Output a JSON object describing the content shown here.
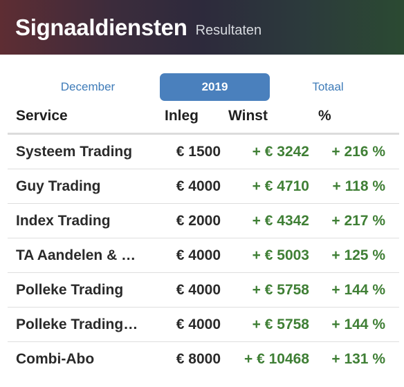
{
  "header": {
    "title": "Signaaldiensten",
    "subtitle": "Resultaten"
  },
  "tabs": [
    {
      "label": "December",
      "active": false
    },
    {
      "label": "2019",
      "active": true
    },
    {
      "label": "Totaal",
      "active": false
    }
  ],
  "table": {
    "columns": [
      "Service",
      "Inleg",
      "Winst",
      "%"
    ],
    "rows": [
      {
        "service": "Systeem Trading",
        "inleg": "€ 1500",
        "winst": "+ € 3242",
        "pct": "+ 216 %"
      },
      {
        "service": "Guy Trading",
        "inleg": "€ 4000",
        "winst": "+ € 4710",
        "pct": "+ 118 %"
      },
      {
        "service": "Index Trading",
        "inleg": "€ 2000",
        "winst": "+ € 4342",
        "pct": "+ 217 %"
      },
      {
        "service": "TA Aandelen & …",
        "inleg": "€ 4000",
        "winst": "+ € 5003",
        "pct": "+ 125 %"
      },
      {
        "service": "Polleke Trading",
        "inleg": "€ 4000",
        "winst": "+ € 5758",
        "pct": "+ 144 %"
      },
      {
        "service": "Polleke Trading…",
        "inleg": "€ 4000",
        "winst": "+ € 5758",
        "pct": "+ 144 %"
      },
      {
        "service": "Combi-Abo",
        "inleg": "€ 8000",
        "winst": "+ € 10468",
        "pct": "+ 131 %"
      }
    ]
  },
  "colors": {
    "accent": "#4a80bd",
    "link": "#3e7bb8",
    "positive": "#3f7f35",
    "text": "#2a2a2a"
  }
}
